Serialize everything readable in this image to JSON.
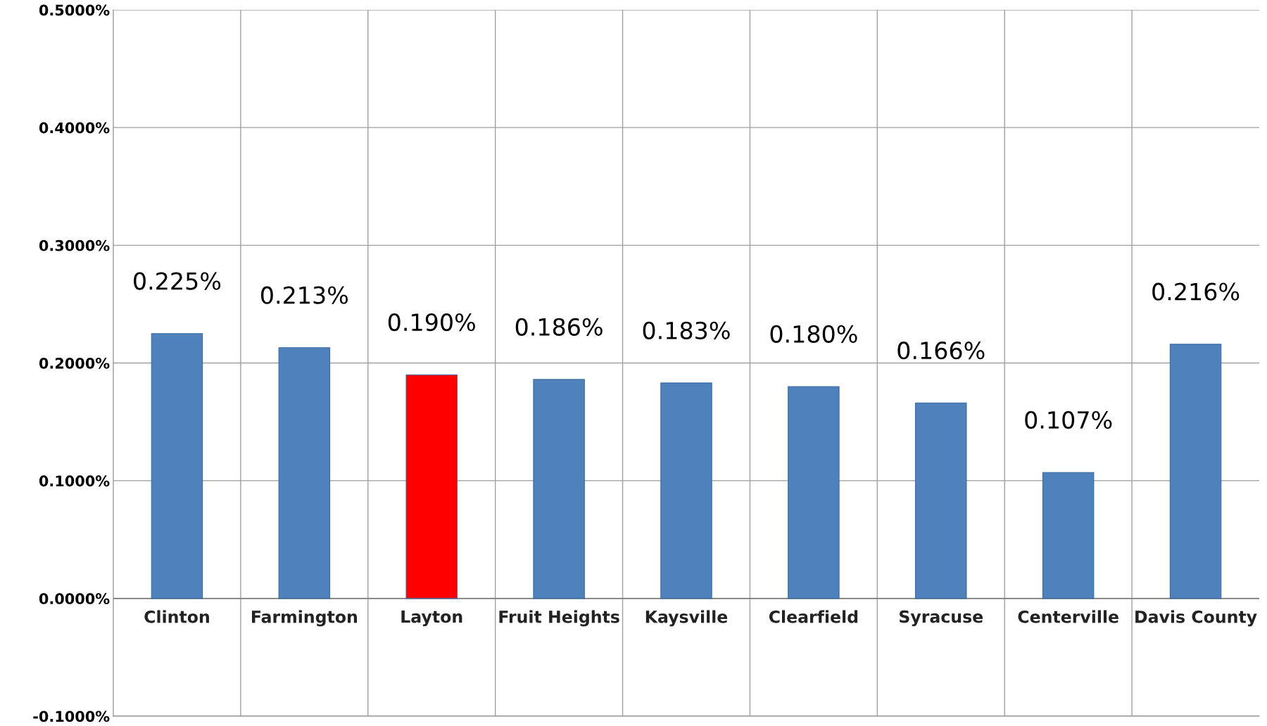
{
  "chart_data": {
    "type": "bar",
    "categories": [
      "Clinton",
      "Farmington",
      "Layton",
      "Fruit Heights",
      "Kaysville",
      "Clearfield",
      "Syracuse",
      "Centerville",
      "Davis County"
    ],
    "values": [
      0.225,
      0.213,
      0.19,
      0.186,
      0.183,
      0.18,
      0.166,
      0.107,
      0.216
    ],
    "colors": [
      "#4f81bd",
      "#4f81bd",
      "#ff0000",
      "#4f81bd",
      "#4f81bd",
      "#4f81bd",
      "#4f81bd",
      "#4f81bd",
      "#4f81bd"
    ],
    "value_labels": [
      "0.225%",
      "0.213%",
      "0.190%",
      "0.186%",
      "0.183%",
      "0.180%",
      "0.166%",
      "0.107%",
      "0.216%"
    ],
    "ylim": [
      -0.1,
      0.5
    ],
    "yticks": [
      {
        "value": -0.1,
        "label": "-0.1000%"
      },
      {
        "value": 0,
        "label": "0.0000%"
      },
      {
        "value": 0.1,
        "label": "0.1000%"
      },
      {
        "value": 0.2,
        "label": "0.2000%"
      },
      {
        "value": 0.3,
        "label": "0.3000%"
      },
      {
        "value": 0.4,
        "label": "0.4000%"
      },
      {
        "value": 0.5,
        "label": "0.5000%"
      }
    ],
    "grid": true,
    "legend": false
  }
}
